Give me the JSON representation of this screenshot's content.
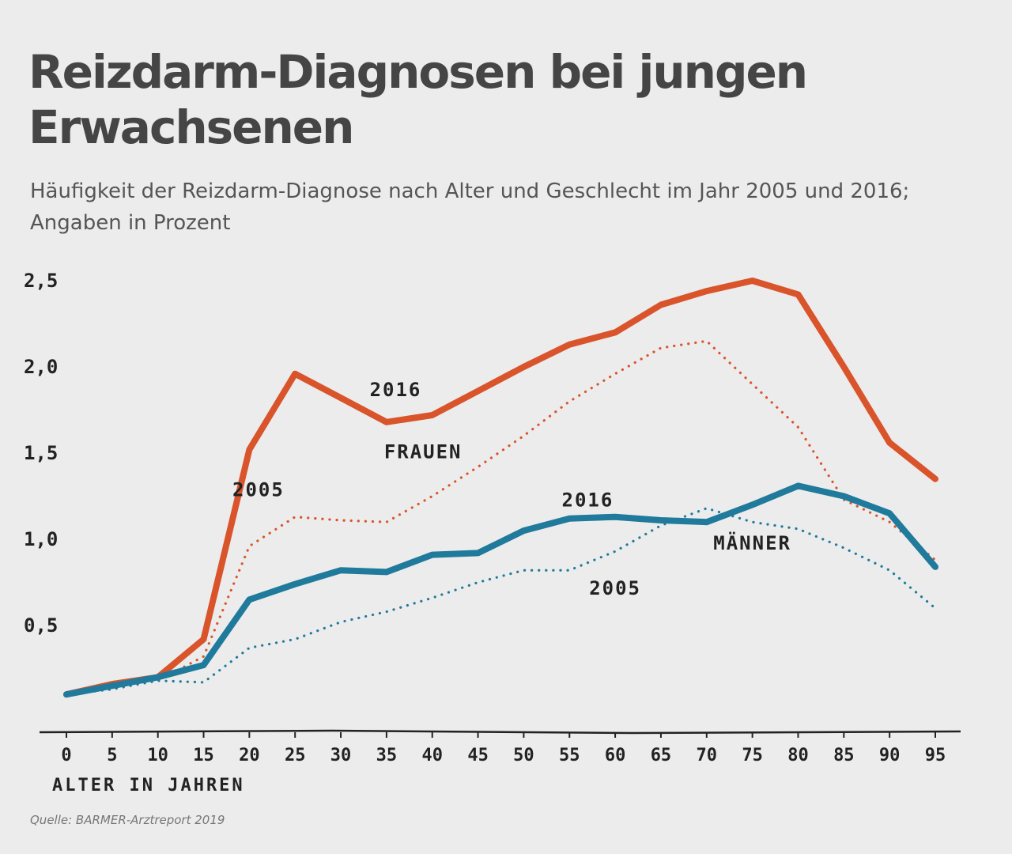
{
  "title": "Reizdarm-Diagnosen bei jungen Erwachsenen",
  "subtitle": "Häufigkeit der Reizdarm-Diagnose nach Alter und Geschlecht im Jahr 2005 und 2016; Angaben in Prozent",
  "source": "Quelle: BARMER-Arztreport 2019",
  "colors": {
    "frauen": "#d9542b",
    "maenner": "#1f7a9c",
    "axis": "#222222"
  },
  "chart_data": {
    "type": "line",
    "title": "Reizdarm-Diagnosen bei jungen Erwachsenen",
    "xlabel": "ALTER IN JAHREN",
    "ylabel": "",
    "x": [
      0,
      5,
      10,
      15,
      20,
      25,
      30,
      35,
      40,
      45,
      50,
      55,
      60,
      65,
      70,
      75,
      80,
      85,
      90,
      95
    ],
    "xlim": [
      0,
      95
    ],
    "ylim": [
      0,
      2.5
    ],
    "yticks": [
      0.5,
      1.0,
      1.5,
      2.0,
      2.5
    ],
    "ytick_labels": [
      "0,5",
      "1,0",
      "1,5",
      "2,0",
      "2,5"
    ],
    "xtick_labels": [
      "0",
      "5",
      "10",
      "15",
      "20",
      "25",
      "30",
      "35",
      "40",
      "45",
      "50",
      "55",
      "60",
      "65",
      "70",
      "75",
      "80",
      "85",
      "90",
      "95"
    ],
    "series": [
      {
        "name": "Frauen 2016",
        "group": "frauen",
        "style": "solid",
        "values": [
          0.1,
          0.16,
          0.2,
          0.42,
          1.52,
          1.96,
          1.82,
          1.68,
          1.72,
          1.86,
          2.0,
          2.13,
          2.2,
          2.36,
          2.44,
          2.5,
          2.42,
          2.0,
          1.56,
          1.35
        ]
      },
      {
        "name": "Frauen 2005",
        "group": "frauen",
        "style": "dotted",
        "values": [
          0.1,
          0.14,
          0.18,
          0.32,
          0.96,
          1.13,
          1.11,
          1.1,
          1.25,
          1.42,
          1.6,
          1.8,
          1.96,
          2.11,
          2.15,
          1.9,
          1.65,
          1.23,
          1.1,
          0.88
        ]
      },
      {
        "name": "Männer 2016",
        "group": "maenner",
        "style": "solid",
        "values": [
          0.1,
          0.15,
          0.2,
          0.27,
          0.65,
          0.74,
          0.82,
          0.81,
          0.91,
          0.92,
          1.05,
          1.12,
          1.13,
          1.11,
          1.1,
          1.2,
          1.31,
          1.25,
          1.15,
          0.84
        ]
      },
      {
        "name": "Männer 2005",
        "group": "maenner",
        "style": "dotted",
        "values": [
          0.1,
          0.13,
          0.18,
          0.17,
          0.37,
          0.42,
          0.52,
          0.58,
          0.66,
          0.75,
          0.82,
          0.82,
          0.93,
          1.08,
          1.18,
          1.1,
          1.06,
          0.95,
          0.82,
          0.6
        ]
      }
    ],
    "annotations": [
      {
        "text": "2016",
        "x": 36,
        "y": 1.83,
        "series": "Frauen 2016"
      },
      {
        "text": "FRAUEN",
        "x": 39,
        "y": 1.47,
        "series": "Frauen"
      },
      {
        "text": "2005",
        "x": 21,
        "y": 1.25,
        "series": "Frauen 2005"
      },
      {
        "text": "2016",
        "x": 57,
        "y": 1.19,
        "series": "Männer 2016"
      },
      {
        "text": "MÄNNER",
        "x": 75,
        "y": 0.94,
        "series": "Männer"
      },
      {
        "text": "2005",
        "x": 60,
        "y": 0.68,
        "series": "Männer 2005"
      }
    ]
  }
}
